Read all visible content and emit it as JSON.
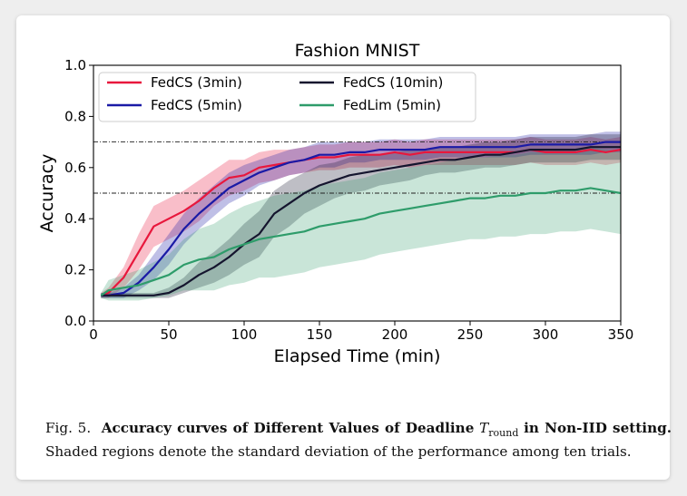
{
  "chart_data": {
    "type": "line",
    "title": "Fashion MNIST",
    "xlabel": "Elapsed Time (min)",
    "ylabel": "Accuracy",
    "xlim": [
      0,
      350
    ],
    "ylim": [
      0.0,
      1.0
    ],
    "xticks": [
      "0",
      "50",
      "100",
      "150",
      "200",
      "250",
      "300",
      "350"
    ],
    "yticks": [
      "0.0",
      "0.2",
      "0.4",
      "0.6",
      "0.8",
      "1.0"
    ],
    "reference_lines": [
      0.7,
      0.5
    ],
    "legend_position": "upper-left",
    "grid": false,
    "x": [
      5,
      10,
      20,
      30,
      40,
      50,
      60,
      70,
      80,
      90,
      100,
      110,
      120,
      130,
      140,
      150,
      160,
      170,
      180,
      190,
      200,
      210,
      220,
      230,
      240,
      250,
      260,
      270,
      280,
      290,
      300,
      310,
      320,
      330,
      340,
      350
    ],
    "series": [
      {
        "name": "FedCS (3min)",
        "color": "#e8173c",
        "values": [
          0.1,
          0.11,
          0.17,
          0.27,
          0.37,
          0.4,
          0.43,
          0.47,
          0.52,
          0.56,
          0.57,
          0.6,
          0.61,
          0.62,
          0.63,
          0.64,
          0.64,
          0.65,
          0.65,
          0.65,
          0.66,
          0.65,
          0.66,
          0.66,
          0.66,
          0.66,
          0.66,
          0.66,
          0.66,
          0.67,
          0.66,
          0.66,
          0.66,
          0.67,
          0.66,
          0.67
        ],
        "std": [
          0.01,
          0.02,
          0.04,
          0.07,
          0.08,
          0.08,
          0.08,
          0.08,
          0.07,
          0.07,
          0.06,
          0.06,
          0.06,
          0.05,
          0.05,
          0.05,
          0.05,
          0.05,
          0.05,
          0.05,
          0.05,
          0.05,
          0.05,
          0.05,
          0.05,
          0.05,
          0.05,
          0.05,
          0.05,
          0.05,
          0.05,
          0.05,
          0.05,
          0.05,
          0.05,
          0.05
        ]
      },
      {
        "name": "FedCS (5min)",
        "color": "#1a1aa6",
        "values": [
          0.1,
          0.1,
          0.11,
          0.15,
          0.21,
          0.28,
          0.36,
          0.42,
          0.47,
          0.52,
          0.55,
          0.58,
          0.6,
          0.62,
          0.63,
          0.65,
          0.65,
          0.66,
          0.66,
          0.67,
          0.67,
          0.67,
          0.67,
          0.68,
          0.68,
          0.68,
          0.68,
          0.68,
          0.68,
          0.69,
          0.69,
          0.69,
          0.69,
          0.69,
          0.7,
          0.7
        ],
        "std": [
          0.01,
          0.01,
          0.02,
          0.03,
          0.05,
          0.06,
          0.06,
          0.06,
          0.06,
          0.06,
          0.06,
          0.05,
          0.05,
          0.05,
          0.05,
          0.05,
          0.05,
          0.04,
          0.04,
          0.04,
          0.04,
          0.04,
          0.04,
          0.04,
          0.04,
          0.04,
          0.04,
          0.04,
          0.04,
          0.04,
          0.04,
          0.04,
          0.04,
          0.04,
          0.04,
          0.04
        ]
      },
      {
        "name": "FedCS (10min)",
        "color": "#15152e",
        "values": [
          0.1,
          0.1,
          0.1,
          0.1,
          0.1,
          0.11,
          0.14,
          0.18,
          0.21,
          0.25,
          0.3,
          0.34,
          0.42,
          0.46,
          0.5,
          0.53,
          0.55,
          0.57,
          0.58,
          0.59,
          0.6,
          0.61,
          0.62,
          0.63,
          0.63,
          0.64,
          0.65,
          0.65,
          0.66,
          0.67,
          0.67,
          0.67,
          0.67,
          0.68,
          0.68,
          0.68
        ],
        "std": [
          0.01,
          0.01,
          0.01,
          0.01,
          0.01,
          0.02,
          0.03,
          0.05,
          0.06,
          0.07,
          0.08,
          0.09,
          0.09,
          0.09,
          0.08,
          0.08,
          0.07,
          0.07,
          0.07,
          0.06,
          0.06,
          0.06,
          0.05,
          0.05,
          0.05,
          0.05,
          0.05,
          0.05,
          0.05,
          0.05,
          0.05,
          0.05,
          0.05,
          0.05,
          0.05,
          0.05
        ]
      },
      {
        "name": "FedLim (5min)",
        "color": "#2e9c6a",
        "values": [
          0.1,
          0.12,
          0.13,
          0.14,
          0.16,
          0.18,
          0.22,
          0.24,
          0.25,
          0.28,
          0.3,
          0.32,
          0.33,
          0.34,
          0.35,
          0.37,
          0.38,
          0.39,
          0.4,
          0.42,
          0.43,
          0.44,
          0.45,
          0.46,
          0.47,
          0.48,
          0.48,
          0.49,
          0.49,
          0.5,
          0.5,
          0.51,
          0.51,
          0.52,
          0.51,
          0.5
        ],
        "std": [
          0.01,
          0.04,
          0.05,
          0.06,
          0.07,
          0.08,
          0.1,
          0.12,
          0.13,
          0.14,
          0.15,
          0.15,
          0.16,
          0.16,
          0.16,
          0.16,
          0.16,
          0.16,
          0.16,
          0.16,
          0.16,
          0.16,
          0.16,
          0.16,
          0.16,
          0.16,
          0.16,
          0.16,
          0.16,
          0.16,
          0.16,
          0.16,
          0.16,
          0.16,
          0.16,
          0.16
        ]
      }
    ]
  },
  "caption": {
    "fig_label": "Fig. 5.",
    "bold_lead": "Accuracy curves of Different Values of Deadline",
    "symbol_main": "T",
    "symbol_sub": "round",
    "bold_tail": "in Non-IID setting.",
    "body": "Shaded regions denote the standard deviation of the performance among ten trials."
  }
}
